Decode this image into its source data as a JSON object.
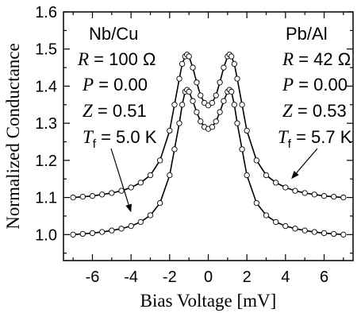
{
  "chart_data": {
    "type": "line",
    "xlabel": "Bias Voltage [mV]",
    "ylabel": "Normalized Conductance",
    "xlim": [
      -7.5,
      7.5
    ],
    "ylim": [
      0.93,
      1.6
    ],
    "x_ticks": [
      -6,
      -4,
      -2,
      0,
      2,
      4,
      6
    ],
    "x_tick_labels": [
      "-6",
      "-4",
      "-2",
      "0",
      "2",
      "4",
      "6"
    ],
    "y_ticks": [
      1.0,
      1.1,
      1.2,
      1.3,
      1.4,
      1.5,
      1.6
    ],
    "y_tick_labels": [
      "1.0",
      "1.1",
      "1.2",
      "1.3",
      "1.4",
      "1.5",
      "1.6"
    ],
    "grid": false,
    "series": [
      {
        "name": "Nb/Cu",
        "style": "fit line with open circles",
        "x": [
          -7.0,
          -6.5,
          -6.0,
          -5.5,
          -5.0,
          -4.5,
          -4.0,
          -3.5,
          -3.0,
          -2.5,
          -2.0,
          -1.75,
          -1.5,
          -1.35,
          -1.2,
          -1.1,
          -1.0,
          -0.8,
          -0.6,
          -0.4,
          -0.2,
          0.0,
          0.2,
          0.4,
          0.6,
          0.8,
          1.0,
          1.1,
          1.2,
          1.35,
          1.5,
          1.75,
          2.0,
          2.5,
          3.0,
          3.5,
          4.0,
          4.5,
          5.0,
          5.5,
          6.0,
          6.5,
          7.0
        ],
        "y": [
          1.0,
          1.002,
          1.004,
          1.007,
          1.011,
          1.016,
          1.023,
          1.034,
          1.052,
          1.085,
          1.16,
          1.23,
          1.3,
          1.35,
          1.385,
          1.39,
          1.385,
          1.36,
          1.33,
          1.305,
          1.29,
          1.285,
          1.29,
          1.305,
          1.33,
          1.36,
          1.385,
          1.39,
          1.385,
          1.35,
          1.3,
          1.23,
          1.16,
          1.085,
          1.052,
          1.034,
          1.023,
          1.016,
          1.011,
          1.007,
          1.004,
          1.002,
          1.0
        ]
      },
      {
        "name": "Pb/Al",
        "style": "fit line with open circles",
        "x": [
          -7.0,
          -6.5,
          -6.0,
          -5.5,
          -5.0,
          -4.5,
          -4.0,
          -3.5,
          -3.0,
          -2.5,
          -2.0,
          -1.75,
          -1.5,
          -1.35,
          -1.2,
          -1.1,
          -1.0,
          -0.8,
          -0.6,
          -0.4,
          -0.2,
          0.0,
          0.2,
          0.4,
          0.6,
          0.8,
          1.0,
          1.1,
          1.2,
          1.35,
          1.5,
          1.75,
          2.0,
          2.5,
          3.0,
          3.5,
          4.0,
          4.5,
          5.0,
          5.5,
          6.0,
          6.5,
          7.0
        ],
        "y": [
          1.1,
          1.102,
          1.104,
          1.108,
          1.112,
          1.118,
          1.127,
          1.14,
          1.16,
          1.2,
          1.28,
          1.35,
          1.42,
          1.46,
          1.48,
          1.485,
          1.48,
          1.45,
          1.41,
          1.375,
          1.355,
          1.348,
          1.355,
          1.375,
          1.41,
          1.45,
          1.48,
          1.485,
          1.48,
          1.46,
          1.42,
          1.35,
          1.28,
          1.2,
          1.16,
          1.14,
          1.127,
          1.118,
          1.112,
          1.108,
          1.104,
          1.102,
          1.1
        ]
      }
    ],
    "annotations": {
      "left": {
        "material": "Nb/Cu",
        "r_symbol": "R",
        "r_value": " = 100 Ω",
        "p_symbol": "P",
        "p_value": " = 0.00",
        "z_symbol": "Z",
        "z_value": " = 0.51",
        "t_symbol": "T",
        "t_subscript": "f",
        "t_value": " = 5.0 K",
        "arrow_target": {
          "x": -4.0,
          "y": 1.06
        }
      },
      "right": {
        "material": "Pb/Al",
        "r_symbol": "R",
        "r_value": " = 42 Ω",
        "p_symbol": "P",
        "p_value": " = 0.00",
        "z_symbol": "Z",
        "z_value": " = 0.53",
        "t_symbol": "T",
        "t_subscript": "f",
        "t_value": " = 5.7 K",
        "arrow_target": {
          "x": 4.3,
          "y": 1.15
        }
      }
    }
  }
}
